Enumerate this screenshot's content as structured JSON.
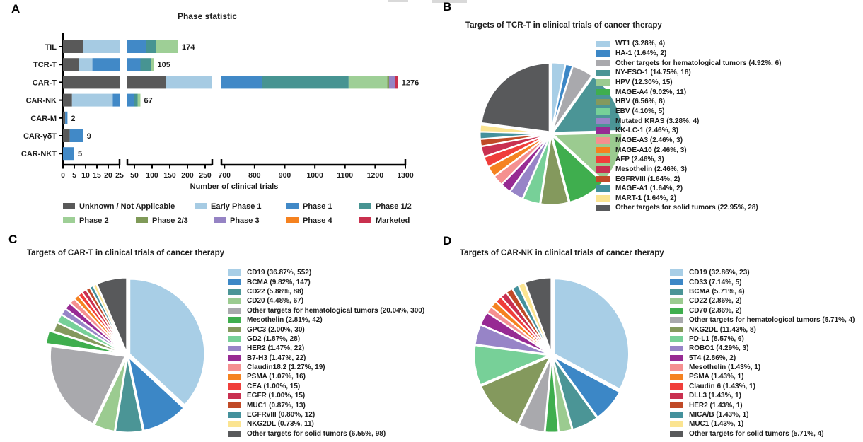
{
  "chart_data": [
    {
      "id": "A",
      "panel_label": "A",
      "type": "bar",
      "orientation": "horizontal",
      "title": "Phase statistic",
      "xlabel": "Number of clinical trials",
      "categories": [
        "TIL",
        "TCR-T",
        "CAR-T",
        "CAR-NK",
        "CAR-M",
        "CAR-γδT",
        "CAR-NKT"
      ],
      "totals": [
        174,
        105,
        1276,
        67,
        2,
        9,
        5
      ],
      "series": [
        {
          "name": "Unknown / Not Applicable",
          "color": "#595959",
          "values": [
            9,
            7,
            140,
            4,
            1,
            3,
            0
          ]
        },
        {
          "name": "Early Phase 1",
          "color": "#a6cbe3",
          "values": [
            21,
            6,
            200,
            18,
            0,
            0,
            0
          ]
        },
        {
          "name": "Phase 1",
          "color": "#4189c7",
          "values": [
            53,
            54,
            484,
            28,
            1,
            6,
            5
          ]
        },
        {
          "name": "Phase 1/2",
          "color": "#479492",
          "values": [
            29,
            30,
            288,
            9,
            0,
            0,
            0
          ]
        },
        {
          "name": "Phase 2",
          "color": "#9ecf96",
          "values": [
            60,
            8,
            128,
            8,
            0,
            0,
            0
          ]
        },
        {
          "name": "Phase 2/3",
          "color": "#7f9a58",
          "values": [
            0,
            0,
            6,
            0,
            0,
            0,
            0
          ]
        },
        {
          "name": "Phase 3",
          "color": "#9583c4",
          "values": [
            2,
            0,
            19,
            0,
            0,
            0,
            0
          ]
        },
        {
          "name": "Phase 4",
          "color": "#f58220",
          "values": [
            0,
            0,
            0,
            0,
            0,
            0,
            0
          ]
        },
        {
          "name": "Marketed",
          "color": "#c9304e",
          "values": [
            0,
            0,
            11,
            0,
            0,
            0,
            0
          ]
        }
      ],
      "axis_segments": [
        {
          "min": 0,
          "max": 25,
          "ticks": [
            0,
            5,
            10,
            15,
            20,
            25
          ]
        },
        {
          "min": 30,
          "max": 270,
          "ticks": [
            50,
            100,
            150,
            200,
            250
          ]
        },
        {
          "min": 690,
          "max": 1300,
          "ticks": [
            700,
            800,
            900,
            1000,
            1100,
            1200,
            1300
          ]
        }
      ],
      "note": "values per phase estimated from bar segment lengths; totals are labeled in figure"
    },
    {
      "id": "B",
      "panel_label": "B",
      "type": "pie",
      "title": "Targets of TCR-T in clinical trials of cancer therapy",
      "slices": [
        {
          "label": "WT1",
          "pct": 3.28,
          "count": 4,
          "color": "#a8cee6"
        },
        {
          "label": "HA-1",
          "pct": 1.64,
          "count": 2,
          "color": "#3c87c6"
        },
        {
          "label": "Other targets for hematological tumors",
          "pct": 4.92,
          "count": 6,
          "color": "#a9a9ad"
        },
        {
          "label": "NY-ESO-1",
          "pct": 14.75,
          "count": 18,
          "color": "#4b9596"
        },
        {
          "label": "HPV",
          "pct": 12.3,
          "count": 15,
          "color": "#9bcb90"
        },
        {
          "label": "MAGE-A4",
          "pct": 9.02,
          "count": 11,
          "color": "#3fae4e"
        },
        {
          "label": "HBV",
          "pct": 6.56,
          "count": 8,
          "color": "#84995d"
        },
        {
          "label": "EBV",
          "pct": 4.1,
          "count": 5,
          "color": "#77d098"
        },
        {
          "label": "Mutated KRAS",
          "pct": 3.28,
          "count": 4,
          "color": "#9784c7"
        },
        {
          "label": "KK-LC-1",
          "pct": 2.46,
          "count": 3,
          "color": "#972a93"
        },
        {
          "label": "MAGE-A3",
          "pct": 2.46,
          "count": 3,
          "color": "#f59090"
        },
        {
          "label": "MAGE-A10",
          "pct": 2.46,
          "count": 3,
          "color": "#f58220"
        },
        {
          "label": "AFP",
          "pct": 2.46,
          "count": 3,
          "color": "#f03e3b"
        },
        {
          "label": "Mesothelin",
          "pct": 2.46,
          "count": 3,
          "color": "#c93050"
        },
        {
          "label": "EGFRVIII",
          "pct": 1.64,
          "count": 2,
          "color": "#c04a27"
        },
        {
          "label": "MAGE-A1",
          "pct": 1.64,
          "count": 2,
          "color": "#44919c"
        },
        {
          "label": "MART-1",
          "pct": 1.64,
          "count": 2,
          "color": "#fbe491"
        },
        {
          "label": "Other targets for solid tumors",
          "pct": 22.95,
          "count": 28,
          "color": "#58595b"
        }
      ]
    },
    {
      "id": "C",
      "panel_label": "C",
      "type": "pie",
      "title": "Targets of CAR-T in clinical trials of cancer therapy",
      "slices": [
        {
          "label": "CD19",
          "pct": 36.87,
          "count": 552,
          "color": "#a8cee6"
        },
        {
          "label": "BCMA",
          "pct": 9.82,
          "count": 147,
          "color": "#3c87c6"
        },
        {
          "label": "CD22",
          "pct": 5.88,
          "count": 88,
          "color": "#4b9596"
        },
        {
          "label": "CD20",
          "pct": 4.48,
          "count": 67,
          "color": "#9bcb90"
        },
        {
          "label": "Other targets for hematological tumors",
          "pct": 20.04,
          "count": 300,
          "color": "#a9a9ad"
        },
        {
          "label": "Mesothelin",
          "pct": 2.81,
          "count": 42,
          "color": "#3fae4e"
        },
        {
          "label": "GPC3",
          "pct": 2.0,
          "count": 30,
          "color": "#84995d"
        },
        {
          "label": "GD2",
          "pct": 1.87,
          "count": 28,
          "color": "#77d098"
        },
        {
          "label": "HER2",
          "pct": 1.47,
          "count": 22,
          "color": "#9784c7"
        },
        {
          "label": "B7-H3",
          "pct": 1.47,
          "count": 22,
          "color": "#972a93"
        },
        {
          "label": "Claudin18.2",
          "pct": 1.27,
          "count": 19,
          "color": "#f59090"
        },
        {
          "label": "PSMA",
          "pct": 1.07,
          "count": 16,
          "color": "#f58220"
        },
        {
          "label": "CEA",
          "pct": 1.0,
          "count": 15,
          "color": "#f03e3b"
        },
        {
          "label": "EGFR",
          "pct": 1.0,
          "count": 15,
          "color": "#c93050"
        },
        {
          "label": "MUC1",
          "pct": 0.87,
          "count": 13,
          "color": "#c04a27"
        },
        {
          "label": "EGFRvIII",
          "pct": 0.8,
          "count": 12,
          "color": "#44919c"
        },
        {
          "label": "NKG2DL",
          "pct": 0.73,
          "count": 11,
          "color": "#fbe491"
        },
        {
          "label": "Other targets for solid tumors",
          "pct": 6.55,
          "count": 98,
          "color": "#58595b"
        }
      ]
    },
    {
      "id": "D",
      "panel_label": "D",
      "type": "pie",
      "title": "Targets of CAR-NK in clinical trials of cancer therapy",
      "slices": [
        {
          "label": "CD19",
          "pct": 32.86,
          "count": 23,
          "color": "#a8cee6"
        },
        {
          "label": "CD33",
          "pct": 7.14,
          "count": 5,
          "color": "#3c87c6"
        },
        {
          "label": "BCMA",
          "pct": 5.71,
          "count": 4,
          "color": "#4b9596"
        },
        {
          "label": "CD22",
          "pct": 2.86,
          "count": 2,
          "color": "#9bcb90"
        },
        {
          "label": "CD70",
          "pct": 2.86,
          "count": 2,
          "color": "#3fae4e"
        },
        {
          "label": "Other targets for hematological tumors",
          "pct": 5.71,
          "count": 4,
          "color": "#a9a9ad"
        },
        {
          "label": "NKG2DL",
          "pct": 11.43,
          "count": 8,
          "color": "#84995d"
        },
        {
          "label": "PD-L1",
          "pct": 8.57,
          "count": 6,
          "color": "#77d098"
        },
        {
          "label": "ROBO1",
          "pct": 4.29,
          "count": 3,
          "color": "#9784c7"
        },
        {
          "label": "5T4",
          "pct": 2.86,
          "count": 2,
          "color": "#972a93"
        },
        {
          "label": "Mesothelin",
          "pct": 1.43,
          "count": 1,
          "color": "#f59090"
        },
        {
          "label": "PSMA",
          "pct": 1.43,
          "count": 1,
          "color": "#f58220"
        },
        {
          "label": "Claudin 6",
          "pct": 1.43,
          "count": 1,
          "color": "#f03e3b"
        },
        {
          "label": "DLL3",
          "pct": 1.43,
          "count": 1,
          "color": "#c93050"
        },
        {
          "label": "HER2",
          "pct": 1.43,
          "count": 1,
          "color": "#c04a27"
        },
        {
          "label": "MICA/B",
          "pct": 1.43,
          "count": 1,
          "color": "#44919c"
        },
        {
          "label": "MUC1",
          "pct": 1.43,
          "count": 1,
          "color": "#fbe491"
        },
        {
          "label": "Other targets for solid tumors",
          "pct": 5.71,
          "count": 4,
          "color": "#58595b"
        }
      ]
    }
  ]
}
